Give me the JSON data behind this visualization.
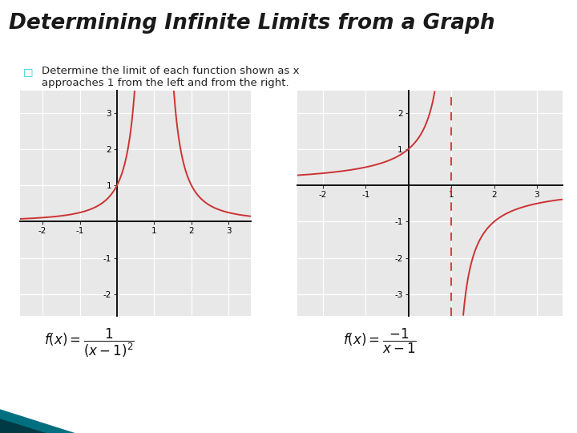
{
  "title": "Determining Infinite Limits from a Graph",
  "subtitle_bullet": "□",
  "bg_color": "#ffffff",
  "title_color": "#1a1a1a",
  "subtitle_color": "#222222",
  "bullet_color": "#22ccdd",
  "graph_bg": "#e8e8e8",
  "curve_color": "#cc3333",
  "dashed_color": "#cc3333",
  "graph1": {
    "xlim": [
      -2.6,
      3.6
    ],
    "ylim": [
      -2.6,
      3.6
    ],
    "xticks": [
      -2,
      -1,
      1,
      2,
      3
    ],
    "yticks": [
      -2,
      -1,
      1,
      2,
      3
    ]
  },
  "graph2": {
    "xlim": [
      -2.6,
      3.6
    ],
    "ylim": [
      -3.6,
      2.6
    ],
    "xticks": [
      -2,
      -1,
      1,
      2,
      3
    ],
    "yticks": [
      -3,
      -2,
      -1,
      1,
      2
    ]
  },
  "bottom_teal": "#00c0d0",
  "bottom_dark": "#007080"
}
